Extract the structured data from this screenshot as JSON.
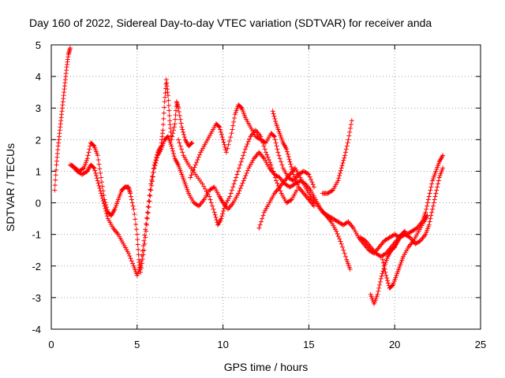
{
  "chart_data": {
    "type": "scatter",
    "title": "Day 160 of 2022, Sidereal Day-to-day VTEC variation (SDTVAR) for receiver anda",
    "xlabel": "GPS time / hours",
    "ylabel": "SDTVAR / TECUs",
    "xlim": [
      0,
      25
    ],
    "ylim": [
      -4,
      5
    ],
    "xticks": [
      0,
      5,
      10,
      15,
      20,
      25
    ],
    "yticks": [
      -4,
      -3,
      -2,
      -1,
      0,
      1,
      2,
      3,
      4,
      5
    ],
    "xtick_labels": [
      "0",
      "5",
      "10",
      "15",
      "20",
      "25"
    ],
    "ytick_labels": [
      "-4",
      "-3",
      "-2",
      "-1",
      "0",
      "1",
      "2",
      "3",
      "4",
      "5"
    ],
    "grid": true,
    "marker": "+",
    "color": "#ff0000",
    "series": [
      {
        "name": "SDTVAR",
        "tracks": [
          [
            [
              0.2,
              0.4
            ],
            [
              0.3,
              1.2
            ],
            [
              0.4,
              1.8
            ],
            [
              0.5,
              2.3
            ],
            [
              0.6,
              2.8
            ],
            [
              0.7,
              3.3
            ],
            [
              0.8,
              3.8
            ],
            [
              0.9,
              4.3
            ],
            [
              1.0,
              4.7
            ],
            [
              1.1,
              4.9
            ]
          ],
          [
            [
              1.1,
              1.2
            ],
            [
              1.4,
              1.1
            ],
            [
              1.6,
              1.0
            ],
            [
              1.9,
              1.1
            ],
            [
              2.1,
              1.4
            ],
            [
              2.3,
              1.9
            ],
            [
              2.5,
              1.8
            ],
            [
              2.7,
              1.5
            ],
            [
              2.9,
              0.8
            ],
            [
              3.1,
              0.1
            ],
            [
              3.3,
              -0.3
            ],
            [
              3.5,
              -0.4
            ],
            [
              3.7,
              -0.2
            ],
            [
              3.9,
              0.1
            ],
            [
              4.1,
              0.4
            ],
            [
              4.3,
              0.5
            ],
            [
              4.5,
              0.5
            ],
            [
              4.6,
              0.3
            ],
            [
              4.8,
              -0.2
            ],
            [
              5.0,
              -1.0
            ],
            [
              5.1,
              -1.8
            ],
            [
              5.2,
              -2.2
            ],
            [
              5.4,
              -1.5
            ],
            [
              5.6,
              -0.5
            ],
            [
              5.8,
              0.4
            ],
            [
              6.0,
              1.1
            ],
            [
              6.2,
              1.5
            ],
            [
              6.4,
              1.7
            ],
            [
              6.6,
              2.0
            ],
            [
              6.8,
              2.1
            ],
            [
              7.0,
              1.8
            ],
            [
              7.2,
              1.4
            ],
            [
              7.4,
              1.2
            ],
            [
              7.6,
              0.9
            ],
            [
              7.8,
              0.6
            ],
            [
              8.0,
              0.3
            ],
            [
              8.3,
              0.0
            ],
            [
              8.6,
              -0.1
            ],
            [
              8.9,
              0.1
            ],
            [
              9.2,
              0.4
            ],
            [
              9.5,
              0.5
            ],
            [
              9.8,
              0.2
            ],
            [
              10.0,
              0.0
            ],
            [
              10.3,
              -0.2
            ],
            [
              10.6,
              0.0
            ],
            [
              10.9,
              0.3
            ],
            [
              11.2,
              0.7
            ],
            [
              11.5,
              1.1
            ],
            [
              11.8,
              1.4
            ],
            [
              12.1,
              1.6
            ],
            [
              12.4,
              1.4
            ],
            [
              12.7,
              1.1
            ],
            [
              13.0,
              0.9
            ],
            [
              13.3,
              0.8
            ],
            [
              13.6,
              0.6
            ],
            [
              13.9,
              0.5
            ],
            [
              14.2,
              0.6
            ],
            [
              14.5,
              0.7
            ],
            [
              14.8,
              0.6
            ],
            [
              15.1,
              0.4
            ],
            [
              15.4,
              0.1
            ],
            [
              15.7,
              -0.2
            ],
            [
              16.0,
              -0.4
            ],
            [
              16.3,
              -0.6
            ],
            [
              16.6,
              -0.9
            ],
            [
              16.9,
              -1.3
            ],
            [
              17.2,
              -1.8
            ],
            [
              17.4,
              -2.1
            ]
          ],
          [
            [
              1.2,
              1.2
            ],
            [
              1.5,
              1.0
            ],
            [
              1.8,
              0.9
            ],
            [
              2.1,
              1.0
            ],
            [
              2.3,
              1.2
            ],
            [
              2.5,
              1.1
            ],
            [
              2.7,
              0.7
            ],
            [
              2.9,
              0.3
            ],
            [
              3.1,
              -0.1
            ],
            [
              3.3,
              -0.5
            ],
            [
              3.6,
              -0.8
            ],
            [
              3.9,
              -1.0
            ],
            [
              4.2,
              -1.3
            ],
            [
              4.5,
              -1.6
            ],
            [
              4.8,
              -2.0
            ],
            [
              5.0,
              -2.3
            ],
            [
              5.2,
              -2.0
            ],
            [
              5.4,
              -1.2
            ],
            [
              5.6,
              -0.3
            ],
            [
              5.8,
              0.6
            ],
            [
              6.0,
              1.2
            ],
            [
              6.2,
              1.6
            ],
            [
              6.4,
              1.8
            ],
            [
              6.5,
              2.3
            ],
            [
              6.6,
              3.2
            ],
            [
              6.7,
              3.9
            ],
            [
              6.8,
              3.4
            ],
            [
              6.9,
              2.6
            ],
            [
              7.0,
              2.0
            ],
            [
              7.2,
              2.5
            ],
            [
              7.3,
              3.2
            ],
            [
              7.4,
              3.0
            ],
            [
              7.6,
              2.4
            ],
            [
              7.8,
              2.0
            ],
            [
              8.0,
              1.8
            ],
            [
              8.2,
              1.9
            ]
          ],
          [
            [
              7.4,
              2.0
            ],
            [
              7.7,
              1.5
            ],
            [
              8.0,
              1.2
            ],
            [
              8.4,
              0.9
            ],
            [
              8.8,
              0.6
            ],
            [
              9.2,
              0.2
            ],
            [
              9.5,
              -0.3
            ],
            [
              9.7,
              -0.7
            ],
            [
              9.9,
              -0.5
            ],
            [
              10.1,
              -0.1
            ],
            [
              10.4,
              0.2
            ],
            [
              10.7,
              0.7
            ],
            [
              11.0,
              1.2
            ],
            [
              11.3,
              1.7
            ],
            [
              11.6,
              2.1
            ],
            [
              11.9,
              2.3
            ],
            [
              12.2,
              2.1
            ],
            [
              12.5,
              1.6
            ],
            [
              12.8,
              1.2
            ],
            [
              13.1,
              0.7
            ],
            [
              13.4,
              0.3
            ],
            [
              13.7,
              0.0
            ],
            [
              14.0,
              0.1
            ],
            [
              14.3,
              0.4
            ]
          ],
          [
            [
              8.1,
              0.8
            ],
            [
              8.4,
              1.2
            ],
            [
              8.7,
              1.6
            ],
            [
              9.0,
              1.9
            ],
            [
              9.3,
              2.2
            ],
            [
              9.6,
              2.5
            ],
            [
              9.8,
              2.4
            ],
            [
              10.0,
              2.0
            ],
            [
              10.2,
              1.6
            ],
            [
              10.5,
              2.2
            ],
            [
              10.7,
              2.8
            ],
            [
              10.9,
              3.1
            ],
            [
              11.1,
              3.0
            ],
            [
              11.3,
              2.7
            ],
            [
              11.6,
              2.4
            ],
            [
              11.9,
              2.1
            ],
            [
              12.2,
              2.0
            ],
            [
              12.5,
              1.9
            ],
            [
              12.8,
              2.2
            ],
            [
              13.0,
              2.1
            ],
            [
              13.2,
              1.6
            ],
            [
              13.5,
              1.1
            ],
            [
              13.8,
              0.8
            ],
            [
              14.1,
              0.7
            ],
            [
              14.4,
              0.9
            ],
            [
              14.7,
              1.0
            ],
            [
              15.0,
              0.9
            ],
            [
              15.3,
              0.5
            ]
          ],
          [
            [
              12.1,
              -0.8
            ],
            [
              12.4,
              -0.3
            ],
            [
              12.7,
              0.0
            ],
            [
              13.0,
              0.3
            ],
            [
              13.3,
              0.5
            ],
            [
              13.6,
              0.7
            ],
            [
              13.9,
              0.9
            ],
            [
              14.2,
              1.1
            ],
            [
              14.5,
              0.8
            ],
            [
              14.8,
              0.5
            ],
            [
              15.1,
              0.2
            ],
            [
              15.4,
              0.0
            ],
            [
              15.8,
              -0.3
            ],
            [
              16.1,
              -0.4
            ],
            [
              16.4,
              -0.5
            ],
            [
              16.7,
              -0.6
            ],
            [
              17.0,
              -0.7
            ],
            [
              17.3,
              -0.6
            ],
            [
              17.6,
              -0.8
            ],
            [
              17.9,
              -1.1
            ],
            [
              18.2,
              -1.3
            ],
            [
              18.5,
              -1.5
            ],
            [
              18.8,
              -1.6
            ],
            [
              19.1,
              -1.4
            ],
            [
              19.4,
              -1.2
            ],
            [
              19.7,
              -1.1
            ],
            [
              20.0,
              -1.0
            ],
            [
              20.3,
              -1.1
            ],
            [
              20.6,
              -1.0
            ],
            [
              20.9,
              -1.1
            ],
            [
              21.2,
              -1.3
            ],
            [
              21.5,
              -1.2
            ],
            [
              21.8,
              -1.0
            ],
            [
              22.0,
              -0.7
            ],
            [
              22.2,
              -0.2
            ],
            [
              22.4,
              0.3
            ],
            [
              22.6,
              0.8
            ],
            [
              22.8,
              1.1
            ]
          ],
          [
            [
              12.9,
              2.9
            ],
            [
              13.1,
              2.5
            ],
            [
              13.3,
              2.2
            ],
            [
              13.5,
              1.9
            ],
            [
              13.7,
              1.7
            ],
            [
              13.9,
              1.3
            ],
            [
              14.1,
              0.9
            ],
            [
              14.4,
              0.5
            ],
            [
              14.7,
              0.3
            ],
            [
              15.0,
              0.1
            ],
            [
              15.3,
              -0.1
            ]
          ],
          [
            [
              15.8,
              0.3
            ],
            [
              16.1,
              0.3
            ],
            [
              16.4,
              0.4
            ],
            [
              16.7,
              0.7
            ],
            [
              16.9,
              1.1
            ],
            [
              17.1,
              1.5
            ],
            [
              17.3,
              2.0
            ],
            [
              17.5,
              2.6
            ]
          ],
          [
            [
              18.0,
              -1.1
            ],
            [
              18.3,
              -1.2
            ],
            [
              18.6,
              -1.4
            ],
            [
              18.9,
              -1.6
            ],
            [
              19.2,
              -1.7
            ],
            [
              19.5,
              -1.6
            ],
            [
              19.8,
              -1.4
            ],
            [
              20.1,
              -1.2
            ],
            [
              20.4,
              -1.0
            ],
            [
              20.7,
              -1.0
            ],
            [
              21.0,
              -0.9
            ],
            [
              21.3,
              -0.8
            ],
            [
              21.6,
              -0.6
            ],
            [
              21.8,
              -0.3
            ],
            [
              22.0,
              0.2
            ],
            [
              22.2,
              0.7
            ],
            [
              22.4,
              1.0
            ],
            [
              22.6,
              1.3
            ],
            [
              22.8,
              1.5
            ]
          ],
          [
            [
              18.6,
              -2.9
            ],
            [
              18.8,
              -3.2
            ],
            [
              19.0,
              -2.9
            ],
            [
              19.2,
              -2.4
            ],
            [
              19.4,
              -2.0
            ],
            [
              19.6,
              -1.7
            ],
            [
              19.8,
              -1.5
            ],
            [
              20.0,
              -1.4
            ],
            [
              20.2,
              -1.2
            ],
            [
              20.4,
              -1.0
            ],
            [
              20.6,
              -0.9
            ]
          ],
          [
            [
              19.3,
              -1.8
            ],
            [
              19.5,
              -2.3
            ],
            [
              19.7,
              -2.7
            ],
            [
              19.9,
              -2.6
            ],
            [
              20.1,
              -2.3
            ],
            [
              20.3,
              -2.0
            ],
            [
              20.5,
              -1.7
            ],
            [
              20.8,
              -1.4
            ],
            [
              21.1,
              -1.2
            ],
            [
              21.4,
              -0.9
            ],
            [
              21.7,
              -0.6
            ],
            [
              21.9,
              -0.4
            ]
          ]
        ]
      }
    ]
  }
}
